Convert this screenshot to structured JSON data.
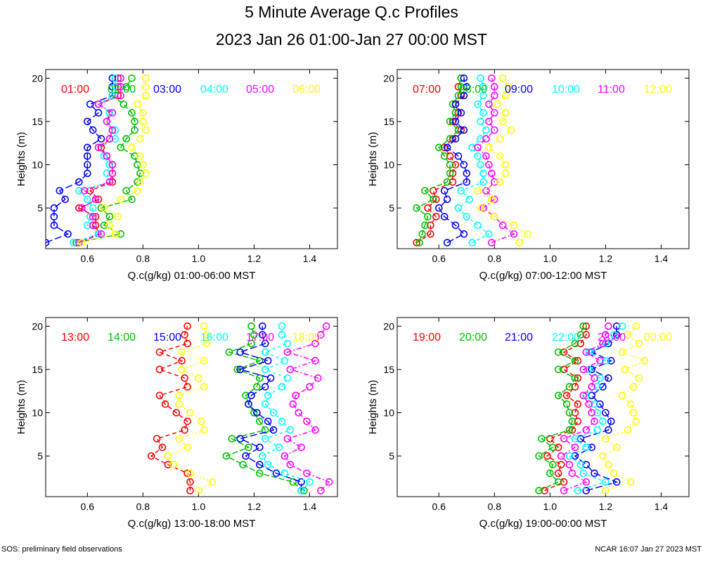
{
  "title": "5 Minute Average Q.c Profiles",
  "subtitle": "2023 Jan 26 01:00-Jan 27 00:00 MST",
  "footer_left": "SOS: preliminary field observations",
  "footer_right": "NCAR 16:07 Jan 27 2023 MST",
  "colors": [
    "#ff0000",
    "#00c000",
    "#0000ff",
    "#00ffff",
    "#ff00ff",
    "#ffff00"
  ],
  "chart_data": [
    {
      "type": "line",
      "xlabel": "Q.c(g/kg) 01:00-06:00 MST",
      "ylabel": "Heights (m)",
      "xlim": [
        0.45,
        1.5
      ],
      "ylim": [
        0.3,
        21
      ],
      "xticks": [
        "0.6",
        "0.8",
        "1.0",
        "1.2",
        "1.4"
      ],
      "yticks": [
        "5",
        "10",
        "15",
        "20"
      ],
      "heights": [
        1,
        2,
        3,
        4,
        5,
        6,
        7,
        8,
        9,
        10,
        11,
        12,
        13,
        14,
        15,
        16,
        17,
        18,
        19,
        20
      ],
      "series": [
        {
          "name": "01:00",
          "values": [
            0.56,
            0.64,
            0.63,
            0.63,
            0.57,
            0.64,
            0.61,
            0.69,
            0.69,
            0.69,
            0.67,
            0.65,
            0.68,
            0.69,
            0.67,
            0.68,
            0.64,
            0.71,
            0.71,
            0.71
          ]
        },
        {
          "name": "02:00",
          "values": [
            0.56,
            0.72,
            0.66,
            0.68,
            0.65,
            0.76,
            0.74,
            0.78,
            0.79,
            0.78,
            0.77,
            0.72,
            0.74,
            0.77,
            0.77,
            0.76,
            0.73,
            0.69,
            0.74,
            0.76
          ]
        },
        {
          "name": "03:00",
          "values": [
            0.45,
            0.53,
            0.48,
            0.48,
            0.48,
            0.52,
            0.5,
            0.57,
            0.6,
            0.6,
            0.6,
            0.6,
            0.65,
            0.62,
            0.6,
            0.64,
            0.61,
            0.69,
            0.69,
            0.69
          ]
        },
        {
          "name": "04:00",
          "values": [
            0.55,
            0.64,
            0.6,
            0.61,
            0.62,
            0.6,
            0.57,
            0.68,
            0.67,
            0.68,
            0.66,
            0.64,
            0.7,
            0.7,
            0.67,
            0.68,
            0.64,
            0.69,
            0.7,
            0.7
          ]
        },
        {
          "name": "05:00",
          "values": [
            0.57,
            0.65,
            0.62,
            0.62,
            0.58,
            0.63,
            0.59,
            0.68,
            0.69,
            0.69,
            0.67,
            0.64,
            0.68,
            0.69,
            0.67,
            0.69,
            0.64,
            0.72,
            0.72,
            0.72
          ]
        },
        {
          "name": "06:00",
          "values": [
            0.58,
            0.7,
            0.68,
            0.71,
            0.66,
            0.72,
            0.78,
            0.79,
            0.81,
            0.8,
            0.79,
            0.76,
            0.79,
            0.81,
            0.8,
            0.8,
            0.78,
            0.81,
            0.81,
            0.81
          ]
        }
      ]
    },
    {
      "type": "line",
      "xlabel": "Q.c(g/kg) 07:00-12:00 MST",
      "ylabel": "Heights (m)",
      "xlim": [
        0.45,
        1.5
      ],
      "ylim": [
        0.3,
        21
      ],
      "xticks": [
        "0.6",
        "0.8",
        "1.0",
        "1.2",
        "1.4"
      ],
      "yticks": [
        "5",
        "10",
        "15",
        "20"
      ],
      "heights": [
        1,
        2,
        3,
        4,
        5,
        6,
        7,
        8,
        9,
        10,
        11,
        12,
        13,
        14,
        15,
        16,
        17,
        18,
        19,
        20
      ],
      "series": [
        {
          "name": "07:00",
          "values": [
            0.52,
            0.57,
            0.57,
            0.59,
            0.56,
            0.59,
            0.58,
            0.65,
            0.65,
            0.66,
            0.64,
            0.62,
            0.65,
            0.68,
            0.65,
            0.67,
            0.66,
            0.68,
            0.67,
            0.68
          ]
        },
        {
          "name": "08:00",
          "values": [
            0.53,
            0.54,
            0.55,
            0.56,
            0.52,
            0.58,
            0.55,
            0.63,
            0.64,
            0.64,
            0.62,
            0.6,
            0.64,
            0.67,
            0.64,
            0.66,
            0.65,
            0.67,
            0.68,
            0.68
          ]
        },
        {
          "name": "09:00",
          "values": [
            0.63,
            0.69,
            0.66,
            0.62,
            0.6,
            0.63,
            0.62,
            0.7,
            0.7,
            0.69,
            0.67,
            0.63,
            0.66,
            0.69,
            0.66,
            0.68,
            0.66,
            0.69,
            0.7,
            0.69
          ]
        },
        {
          "name": "10:00",
          "values": [
            0.72,
            0.78,
            0.74,
            0.7,
            0.67,
            0.71,
            0.68,
            0.76,
            0.76,
            0.75,
            0.74,
            0.72,
            0.75,
            0.77,
            0.75,
            0.76,
            0.74,
            0.76,
            0.76,
            0.75
          ]
        },
        {
          "name": "11:00",
          "values": [
            0.79,
            0.87,
            0.83,
            0.8,
            0.76,
            0.8,
            0.77,
            0.8,
            0.79,
            0.78,
            0.77,
            0.74,
            0.77,
            0.8,
            0.78,
            0.8,
            0.78,
            0.8,
            0.8,
            0.79
          ]
        },
        {
          "name": "12:00",
          "values": [
            0.89,
            0.92,
            0.87,
            0.8,
            0.75,
            0.79,
            0.74,
            0.82,
            0.84,
            0.84,
            0.82,
            0.78,
            0.82,
            0.86,
            0.83,
            0.84,
            0.81,
            0.84,
            0.85,
            0.83
          ]
        }
      ]
    },
    {
      "type": "line",
      "xlabel": "Q.c(g/kg) 13:00-18:00 MST",
      "ylabel": "Heights (m)",
      "xlim": [
        0.45,
        1.5
      ],
      "ylim": [
        0.3,
        21
      ],
      "xticks": [
        "0.6",
        "0.8",
        "1.0",
        "1.2",
        "1.4"
      ],
      "yticks": [
        "5",
        "10",
        "15",
        "20"
      ],
      "heights": [
        1,
        2,
        3,
        4,
        5,
        6,
        7,
        8,
        9,
        10,
        11,
        12,
        13,
        14,
        15,
        16,
        17,
        18,
        19,
        20
      ],
      "series": [
        {
          "name": "13:00",
          "values": [
            0.97,
            0.97,
            0.96,
            0.89,
            0.83,
            0.87,
            0.85,
            0.95,
            0.96,
            0.92,
            0.88,
            0.86,
            0.96,
            0.95,
            0.86,
            0.94,
            0.86,
            0.96,
            0.95,
            0.96
          ]
        },
        {
          "name": "14:00",
          "values": [
            1.38,
            1.34,
            1.22,
            1.16,
            1.1,
            1.18,
            1.12,
            1.24,
            1.22,
            1.2,
            1.18,
            1.17,
            1.21,
            1.22,
            1.14,
            1.22,
            1.11,
            1.19,
            1.2,
            1.19
          ]
        },
        {
          "name": "15:00",
          "values": [
            1.37,
            1.37,
            1.28,
            1.22,
            1.17,
            1.22,
            1.15,
            1.27,
            1.25,
            1.21,
            1.18,
            1.19,
            1.24,
            1.26,
            1.15,
            1.25,
            1.15,
            1.24,
            1.23,
            1.23
          ]
        },
        {
          "name": "16:00",
          "values": [
            1.37,
            1.4,
            1.31,
            1.25,
            1.23,
            1.29,
            1.24,
            1.33,
            1.3,
            1.27,
            1.24,
            1.25,
            1.3,
            1.32,
            1.24,
            1.31,
            1.24,
            1.32,
            1.3,
            1.3
          ]
        },
        {
          "name": "17:00",
          "values": [
            1.44,
            1.47,
            1.39,
            1.33,
            1.31,
            1.37,
            1.32,
            1.42,
            1.39,
            1.36,
            1.34,
            1.35,
            1.4,
            1.43,
            1.33,
            1.42,
            1.32,
            1.42,
            1.44,
            1.46
          ]
        },
        {
          "name": "18:00",
          "values": [
            1.0,
            1.05,
            0.97,
            0.91,
            0.89,
            0.96,
            0.93,
            1.02,
            1.01,
            0.97,
            0.93,
            0.93,
            1.02,
            1.0,
            0.94,
            1.02,
            0.94,
            1.03,
            1.03,
            1.02
          ]
        }
      ]
    },
    {
      "type": "line",
      "xlabel": "Q.c(g/kg) 19:00-00:00 MST",
      "ylabel": "Heights (m)",
      "xlim": [
        0.45,
        1.5
      ],
      "ylim": [
        0.3,
        21
      ],
      "xticks": [
        "0.6",
        "0.8",
        "1.0",
        "1.2",
        "1.4"
      ],
      "yticks": [
        "5",
        "10",
        "15",
        "20"
      ],
      "heights": [
        1,
        2,
        3,
        4,
        5,
        6,
        7,
        8,
        9,
        10,
        11,
        12,
        13,
        14,
        15,
        16,
        17,
        18,
        19,
        20
      ],
      "series": [
        {
          "name": "19:00",
          "values": [
            0.98,
            1.05,
            1.03,
            1.04,
            0.99,
            1.03,
            1.0,
            1.08,
            1.1,
            1.09,
            1.1,
            1.06,
            1.09,
            1.1,
            1.05,
            1.1,
            1.05,
            1.11,
            1.13,
            1.13
          ]
        },
        {
          "name": "20:00",
          "values": [
            0.96,
            1.03,
            1.0,
            1.01,
            0.96,
            1.01,
            0.97,
            1.07,
            1.08,
            1.07,
            1.06,
            1.03,
            1.07,
            1.09,
            1.03,
            1.09,
            1.03,
            1.09,
            1.11,
            1.12
          ]
        },
        {
          "name": "21:00",
          "values": [
            1.13,
            1.24,
            1.16,
            1.13,
            1.09,
            1.15,
            1.11,
            1.21,
            1.22,
            1.2,
            1.18,
            1.15,
            1.19,
            1.21,
            1.15,
            1.22,
            1.15,
            1.21,
            1.24,
            1.24
          ]
        },
        {
          "name": "22:00",
          "values": [
            1.1,
            1.2,
            1.12,
            1.11,
            1.07,
            1.13,
            1.09,
            1.17,
            1.19,
            1.17,
            1.16,
            1.13,
            1.17,
            1.18,
            1.14,
            1.2,
            1.14,
            1.2,
            1.23,
            1.26
          ]
        },
        {
          "name": "23:00",
          "values": [
            1.05,
            1.13,
            1.08,
            1.07,
            1.04,
            1.09,
            1.05,
            1.13,
            1.16,
            1.15,
            1.14,
            1.12,
            1.15,
            1.16,
            1.12,
            1.18,
            1.13,
            1.19,
            1.2,
            1.21
          ]
        },
        {
          "name": "00:00",
          "values": [
            1.2,
            1.29,
            1.23,
            1.21,
            1.19,
            1.24,
            1.2,
            1.28,
            1.31,
            1.3,
            1.29,
            1.26,
            1.3,
            1.32,
            1.27,
            1.34,
            1.26,
            1.32,
            1.28,
            1.31
          ]
        }
      ]
    }
  ]
}
